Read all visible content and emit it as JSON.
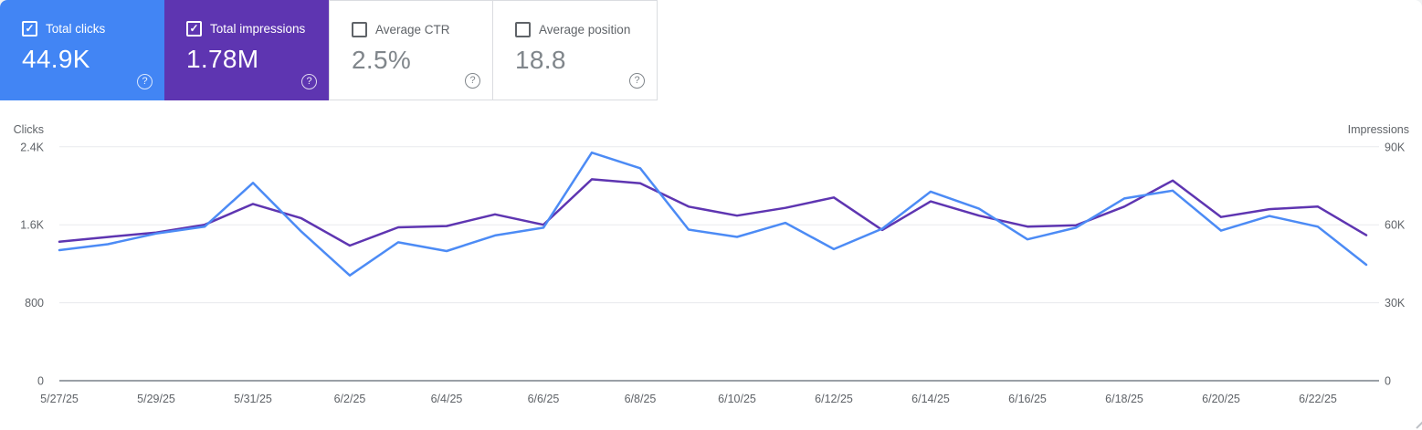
{
  "icons": {
    "help": "?",
    "check": "✓"
  },
  "colors": {
    "clicks_card_bg": "#4285f4",
    "impressions_card_bg": "#5e35b1",
    "clicks_line": "#4c8bf5",
    "impressions_line": "#5e35b1",
    "gridline": "#e8eaed",
    "axis_line": "#9aa0a6",
    "axis_text": "#5f6368"
  },
  "cards": [
    {
      "label": "Total clicks",
      "value": "44.9K",
      "checked": true,
      "bg": "#4285f4"
    },
    {
      "label": "Total impressions",
      "value": "1.78M",
      "checked": true,
      "bg": "#5e35b1"
    },
    {
      "label": "Average CTR",
      "value": "2.5%",
      "checked": false,
      "bg": "#ffffff"
    },
    {
      "label": "Average position",
      "value": "18.8",
      "checked": false,
      "bg": "#ffffff"
    }
  ],
  "chart_data": {
    "type": "line",
    "x": [
      "5/27/25",
      "5/28/25",
      "5/29/25",
      "5/30/25",
      "5/31/25",
      "6/1/25",
      "6/2/25",
      "6/3/25",
      "6/4/25",
      "6/5/25",
      "6/6/25",
      "6/7/25",
      "6/8/25",
      "6/9/25",
      "6/10/25",
      "6/11/25",
      "6/12/25",
      "6/13/25",
      "6/14/25",
      "6/15/25",
      "6/16/25",
      "6/17/25",
      "6/18/25",
      "6/19/25",
      "6/20/25",
      "6/21/25",
      "6/22/25",
      "6/23/25"
    ],
    "x_tick_labels": [
      "5/27/25",
      "5/29/25",
      "5/31/25",
      "6/2/25",
      "6/4/25",
      "6/6/25",
      "6/8/25",
      "6/10/25",
      "6/12/25",
      "6/14/25",
      "6/16/25",
      "6/18/25",
      "6/20/25",
      "6/22/25"
    ],
    "x_labeled_every": 2,
    "series": [
      {
        "name": "Clicks",
        "axis": "left",
        "color": "#4c8bf5",
        "values": [
          1340,
          1400,
          1510,
          1580,
          2030,
          1530,
          1080,
          1420,
          1330,
          1490,
          1570,
          2340,
          2180,
          1550,
          1475,
          1620,
          1350,
          1560,
          1940,
          1765,
          1450,
          1570,
          1870,
          1950,
          1540,
          1690,
          1580,
          1190
        ]
      },
      {
        "name": "Impressions",
        "axis": "right",
        "color": "#5e35b1",
        "values": [
          53500,
          55300,
          57000,
          60000,
          68000,
          62500,
          52000,
          59000,
          59500,
          64000,
          60000,
          77500,
          76000,
          67000,
          63500,
          66500,
          70500,
          58000,
          69000,
          63500,
          59300,
          59800,
          67000,
          77000,
          63000,
          66000,
          67000,
          56000
        ]
      }
    ],
    "left_axis": {
      "title": "Clicks",
      "ticks": [
        "0",
        "800",
        "1.6K",
        "2.4K"
      ],
      "tick_step": 800,
      "ylim": [
        0,
        2400
      ]
    },
    "right_axis": {
      "title": "Impressions",
      "ticks": [
        "0",
        "30K",
        "60K",
        "90K"
      ],
      "tick_step": 30000,
      "ylim": [
        0,
        90000
      ]
    },
    "grid": true,
    "legend_position": "none"
  }
}
